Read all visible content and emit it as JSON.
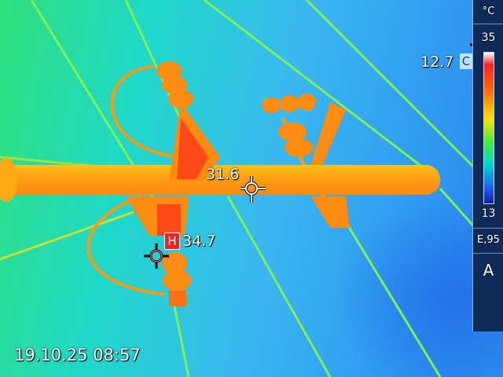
{
  "scale": {
    "unit": "°C",
    "max": "35",
    "min": "13",
    "emissivity": "E,95",
    "mode": "A"
  },
  "spots": {
    "center": {
      "value": "31.6"
    },
    "hot": {
      "badge": "H",
      "value": "34.7"
    },
    "cold": {
      "badge": "C",
      "value": "12.7"
    }
  },
  "timestamp": "19.10.25 08:57",
  "palette": {
    "hot": "#ff3a1a",
    "warm": "#ffa31a",
    "mid": "#ffe100",
    "cool": "#1fd9d0",
    "cold": "#1b6ff0"
  }
}
